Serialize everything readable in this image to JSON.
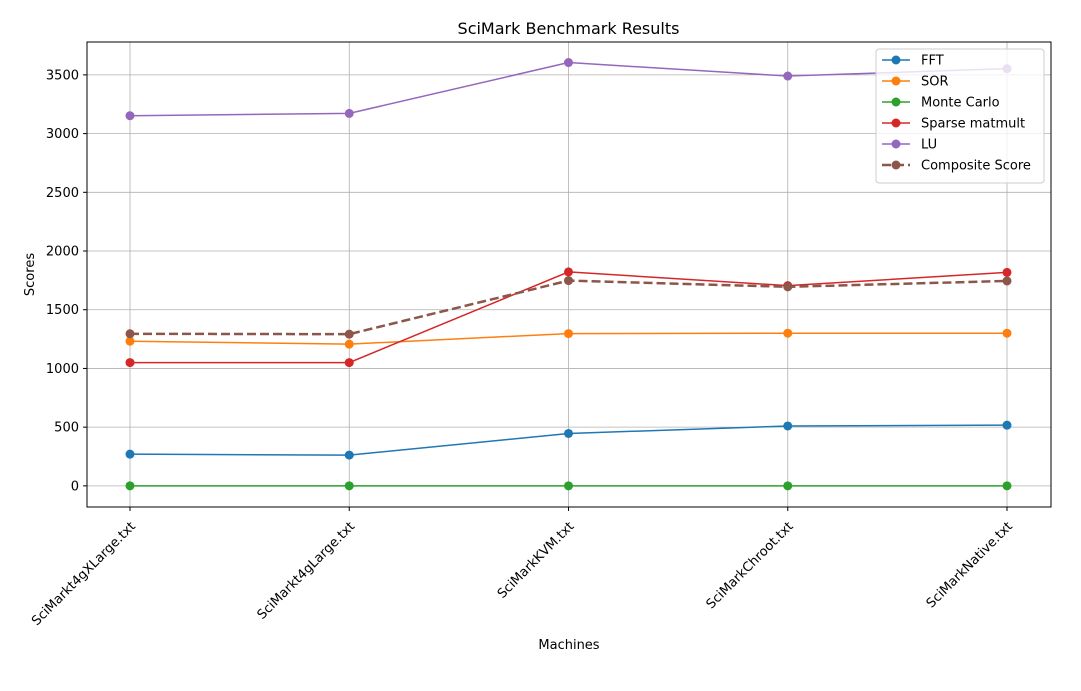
{
  "chart_data": {
    "type": "line",
    "title": "SciMark Benchmark Results",
    "xlabel": "Machines",
    "ylabel": "Scores",
    "categories": [
      "SciMarkt4gXLarge.txt",
      "SciMarkt4gLarge.txt",
      "SciMarkKVM.txt",
      "SciMarkChroot.txt",
      "SciMarkNative.txt"
    ],
    "ylim": [
      -180,
      3780
    ],
    "yticks": [
      0,
      500,
      1000,
      1500,
      2000,
      2500,
      3000,
      3500
    ],
    "grid": true,
    "legend_position": "top-right",
    "series": [
      {
        "name": "FFT",
        "color": "#1f77b4",
        "style": "solid",
        "values": [
          270,
          262,
          446,
          510,
          517
        ]
      },
      {
        "name": "SOR",
        "color": "#ff7f0e",
        "style": "solid",
        "values": [
          1232,
          1207,
          1297,
          1300,
          1300
        ]
      },
      {
        "name": "Monte Carlo",
        "color": "#2ca02c",
        "style": "solid",
        "values": [
          0,
          0,
          0,
          0,
          0
        ]
      },
      {
        "name": "Sparse matmult",
        "color": "#d62728",
        "style": "solid",
        "values": [
          1050,
          1050,
          1822,
          1705,
          1818
        ]
      },
      {
        "name": "LU",
        "color": "#9467bd",
        "style": "solid",
        "values": [
          3152,
          3172,
          3605,
          3490,
          3553
        ]
      },
      {
        "name": "Composite Score",
        "color": "#8c564b",
        "style": "dashed",
        "values": [
          1295,
          1292,
          1748,
          1695,
          1745
        ]
      }
    ]
  }
}
